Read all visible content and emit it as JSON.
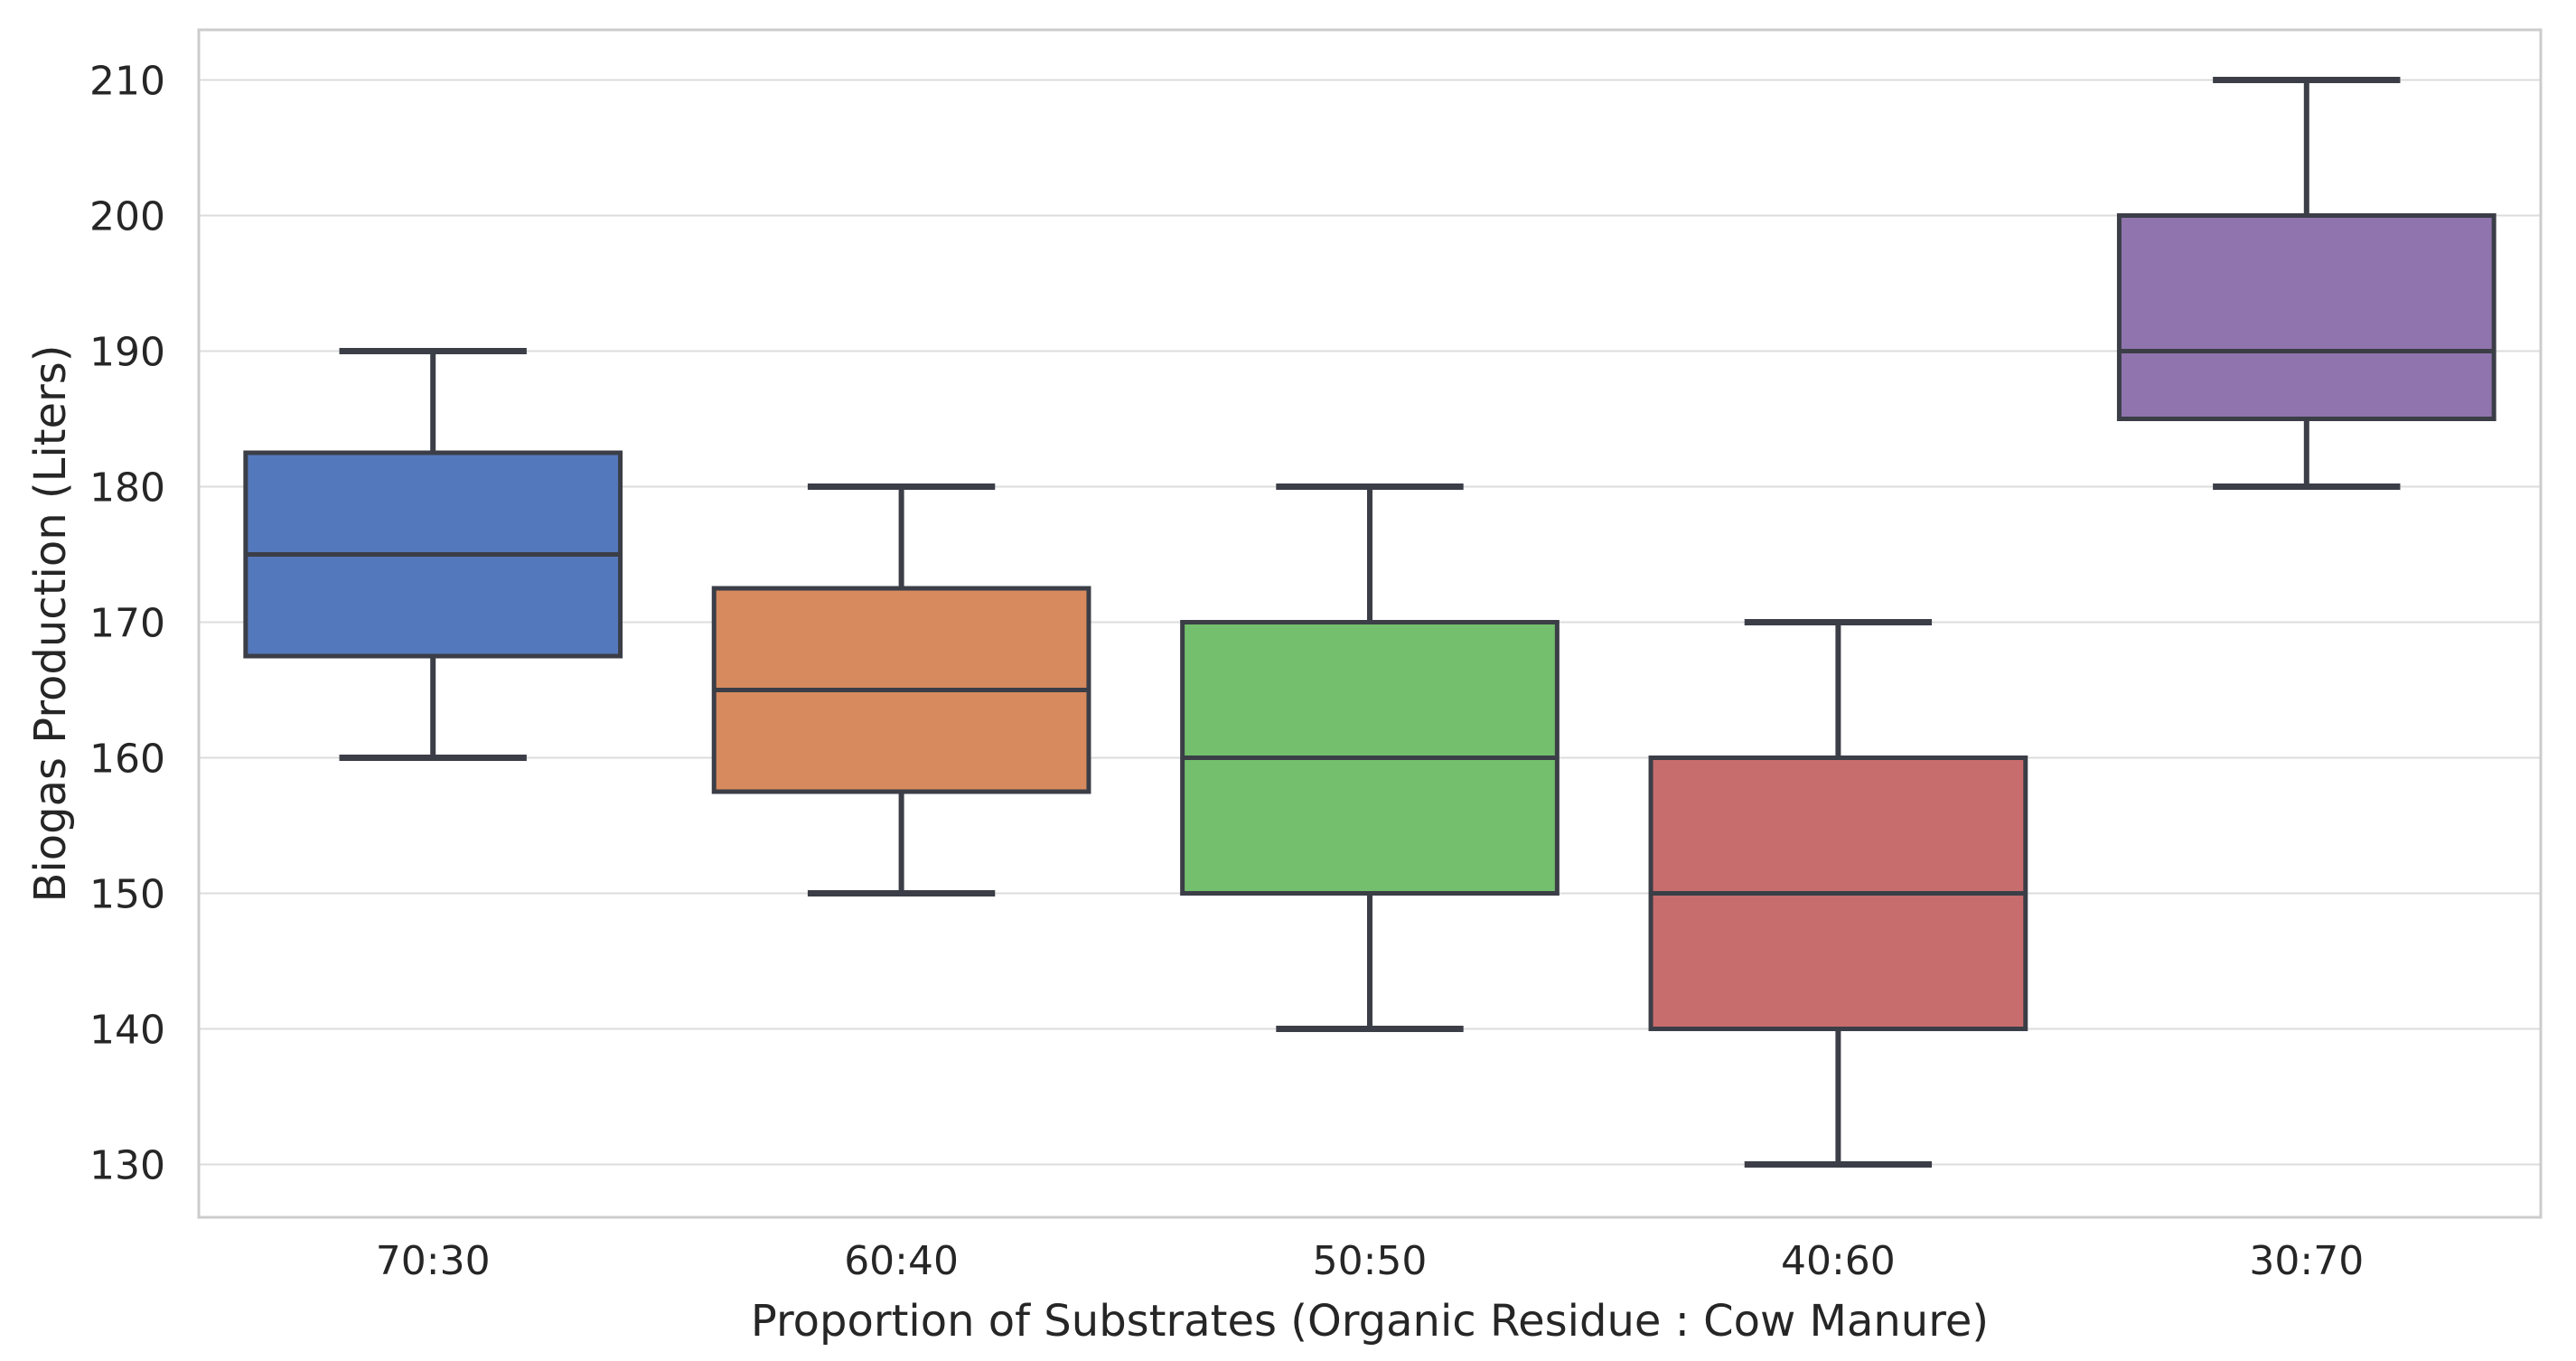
{
  "figure": {
    "background": "#ffffff"
  },
  "chart_data": {
    "type": "box",
    "title": "",
    "xlabel": "Proportion of Substrates (Organic Residue : Cow Manure)",
    "ylabel": "Biogas Production (Liters)",
    "categories": [
      "70:30",
      "60:40",
      "50:50",
      "40:60",
      "30:70"
    ],
    "y_ticks": [
      130,
      140,
      150,
      160,
      170,
      180,
      190,
      200,
      210
    ],
    "ylim": [
      126.1,
      213.7
    ],
    "grid": "horizontal-only",
    "legend_position": "none",
    "series": [
      {
        "category": "70:30",
        "whisker_low": 160,
        "q1": 167.5,
        "median": 175,
        "q3": 182.5,
        "whisker_high": 190,
        "fill": "#5478bc"
      },
      {
        "category": "60:40",
        "whisker_low": 150,
        "q1": 157.5,
        "median": 165,
        "q3": 172.5,
        "whisker_high": 180,
        "fill": "#d68a5e"
      },
      {
        "category": "50:50",
        "whisker_low": 140,
        "q1": 150,
        "median": 160,
        "q3": 170,
        "whisker_high": 180,
        "fill": "#74bf6d"
      },
      {
        "category": "40:60",
        "whisker_low": 130,
        "q1": 140,
        "median": 150,
        "q3": 160,
        "whisker_high": 170,
        "fill": "#c76d6e"
      },
      {
        "category": "30:70",
        "whisker_low": 180,
        "q1": 185,
        "median": 190,
        "q3": 200,
        "whisker_high": 210,
        "fill": "#9074ae"
      }
    ],
    "colors": {
      "box_edge": "#3b3e47",
      "gridline": "#dcdcdc",
      "spine": "#cccccc",
      "text": "#262626"
    }
  }
}
